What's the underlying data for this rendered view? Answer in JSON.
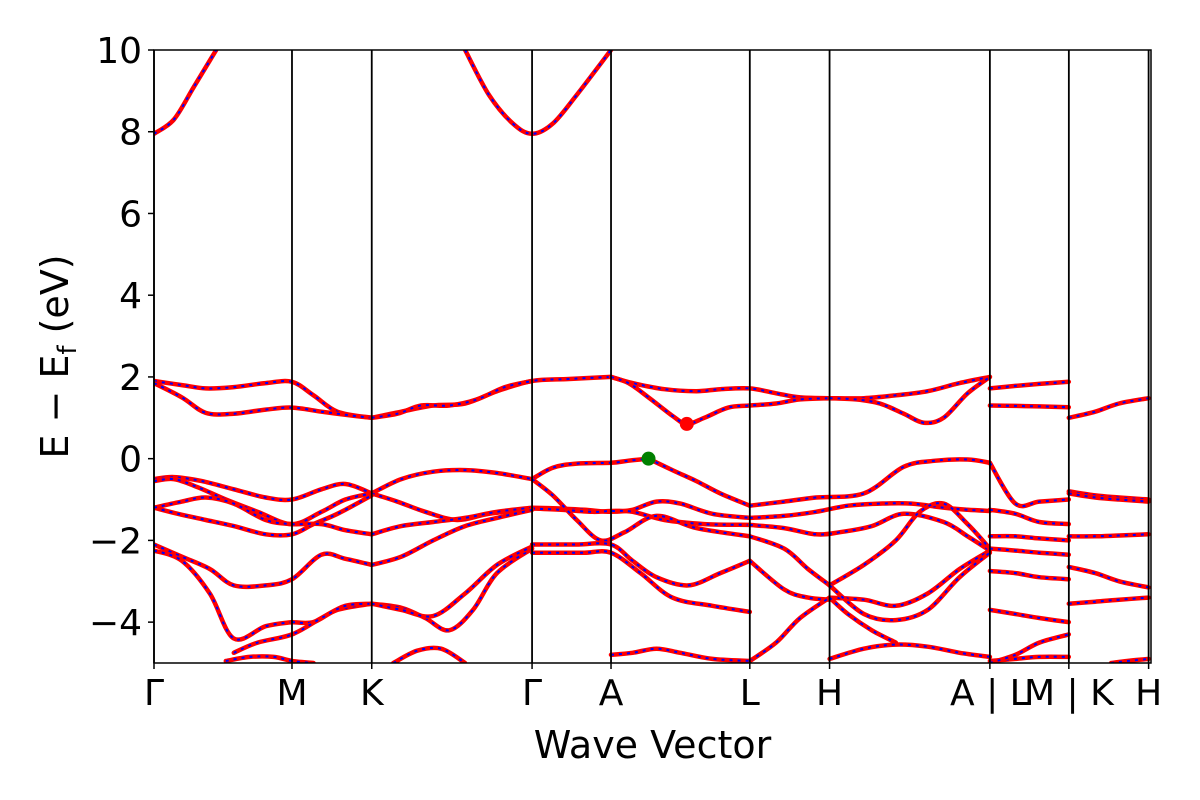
{
  "chart_data": {
    "type": "line",
    "title": "",
    "xlabel": "Wave Vector",
    "ylabel": "E − E_f (eV)",
    "ylabel_parts": {
      "main": "E − E",
      "sub": "f",
      "unit": " (eV)"
    },
    "ylim": [
      -5,
      10
    ],
    "yticks": [
      {
        "value": 10,
        "label": "10"
      },
      {
        "value": 8,
        "label": "8"
      },
      {
        "value": 6,
        "label": "6"
      },
      {
        "value": 4,
        "label": "4"
      },
      {
        "value": 2,
        "label": "2"
      },
      {
        "value": 0,
        "label": "0"
      },
      {
        "value": -2,
        "label": "−2"
      },
      {
        "value": -4,
        "label": "−4"
      }
    ],
    "xlim": [
      0,
      12.5
    ],
    "kpoints": [
      {
        "x": 0.0,
        "label": "Γ"
      },
      {
        "x": 1.73,
        "label": "M"
      },
      {
        "x": 2.73,
        "label": "K"
      },
      {
        "x": 4.74,
        "label": "Γ"
      },
      {
        "x": 5.73,
        "label": "A"
      },
      {
        "x": 7.47,
        "label": "L"
      },
      {
        "x": 8.47,
        "label": "H"
      },
      {
        "x": 10.48,
        "label": "A | L"
      },
      {
        "x": 11.47,
        "label": "M | K"
      },
      {
        "x": 12.47,
        "label": "H"
      }
    ],
    "line_colors": {
      "band": "#ff0000",
      "overlay": "#0000ff"
    },
    "markers": [
      {
        "name": "VBM",
        "x": 6.2,
        "y": 0.0,
        "color": "#008000"
      },
      {
        "name": "CBM",
        "x": 6.68,
        "y": 0.85,
        "color": "#ff0000"
      }
    ],
    "bands": [
      {
        "x": [
          0.0,
          0.35,
          0.65,
          1.0,
          1.4,
          1.73,
          2.0,
          2.3,
          2.73
        ],
        "y": [
          1.9,
          1.8,
          1.72,
          1.75,
          1.85,
          1.88,
          1.55,
          1.15,
          1.0
        ]
      },
      {
        "x": [
          2.73,
          3.1,
          3.5,
          3.9,
          4.3,
          4.74,
          5.2,
          5.73
        ],
        "y": [
          1.0,
          1.15,
          1.3,
          1.35,
          1.65,
          1.9,
          1.95,
          2.0
        ]
      },
      {
        "x": [
          5.73,
          6.0,
          6.4,
          6.8,
          7.1,
          7.47,
          7.8,
          8.1,
          8.47
        ],
        "y": [
          2.0,
          1.85,
          1.7,
          1.65,
          1.7,
          1.72,
          1.6,
          1.5,
          1.48
        ]
      },
      {
        "x": [
          8.47,
          8.9,
          9.3,
          9.7,
          10.1,
          10.48
        ],
        "y": [
          1.48,
          1.48,
          1.55,
          1.65,
          1.85,
          2.0
        ]
      },
      {
        "x": [
          0.0,
          0.35,
          0.65,
          1.0,
          1.4,
          1.73,
          2.1,
          2.5,
          2.73
        ],
        "y": [
          1.85,
          1.5,
          1.12,
          1.1,
          1.2,
          1.25,
          1.15,
          1.05,
          1.0
        ]
      },
      {
        "x": [
          2.73,
          3.05,
          3.35,
          3.7,
          4.05,
          4.4,
          4.74
        ],
        "y": [
          1.0,
          1.1,
          1.3,
          1.3,
          1.45,
          1.75,
          1.9
        ]
      },
      {
        "x": [
          5.73,
          5.95,
          6.2,
          6.5,
          6.68,
          6.9,
          7.2,
          7.47,
          7.8,
          8.1,
          8.47
        ],
        "y": [
          2.0,
          1.85,
          1.5,
          1.05,
          0.85,
          1.0,
          1.25,
          1.3,
          1.35,
          1.45,
          1.48
        ]
      },
      {
        "x": [
          8.47,
          8.8,
          9.1,
          9.4,
          9.65,
          9.9,
          10.2,
          10.48
        ],
        "y": [
          1.48,
          1.45,
          1.35,
          1.1,
          0.88,
          1.0,
          1.6,
          2.0
        ]
      },
      {
        "x": [
          10.48,
          10.8,
          11.1,
          11.47
        ],
        "y": [
          1.72,
          1.78,
          1.83,
          1.88
        ]
      },
      {
        "x": [
          10.48,
          10.8,
          11.1,
          11.47
        ],
        "y": [
          1.3,
          1.29,
          1.28,
          1.26
        ]
      },
      {
        "x": [
          11.47,
          11.8,
          12.1,
          12.47
        ],
        "y": [
          1.0,
          1.15,
          1.35,
          1.48
        ]
      },
      {
        "x": [
          0.0,
          0.25,
          0.6,
          1.0,
          1.4,
          1.73,
          2.1,
          2.4,
          2.73
        ],
        "y": [
          -0.5,
          -0.45,
          -0.55,
          -0.75,
          -0.95,
          -1.0,
          -0.75,
          -0.62,
          -0.85
        ]
      },
      {
        "x": [
          2.73,
          3.1,
          3.5,
          3.9,
          4.3,
          4.74
        ],
        "y": [
          -0.85,
          -0.5,
          -0.32,
          -0.28,
          -0.35,
          -0.5
        ]
      },
      {
        "x": [
          4.74,
          5.0,
          5.3,
          5.73,
          5.95,
          6.2
        ],
        "y": [
          -0.5,
          -0.22,
          -0.12,
          -0.1,
          -0.05,
          0.0
        ]
      },
      {
        "x": [
          6.2,
          6.5,
          6.8,
          7.1,
          7.47
        ],
        "y": [
          0.0,
          -0.28,
          -0.55,
          -0.85,
          -1.15
        ]
      },
      {
        "x": [
          7.47,
          7.9,
          8.3,
          8.9,
          9.4,
          9.8,
          10.2,
          10.48
        ],
        "y": [
          -1.15,
          -1.05,
          -0.95,
          -0.85,
          -0.2,
          -0.05,
          -0.02,
          -0.1
        ]
      },
      {
        "x": [
          0.0,
          0.25,
          0.55,
          0.9,
          1.3,
          1.73,
          2.1,
          2.4,
          2.73
        ],
        "y": [
          -0.55,
          -0.5,
          -0.7,
          -1.0,
          -1.3,
          -1.6,
          -1.3,
          -1.0,
          -0.85
        ]
      },
      {
        "x": [
          2.73,
          3.05,
          3.4,
          3.8,
          4.2,
          4.74
        ],
        "y": [
          -0.85,
          -1.05,
          -1.3,
          -1.5,
          -1.35,
          -1.22
        ]
      },
      {
        "x": [
          0.0,
          0.3,
          0.65,
          1.0,
          1.4,
          1.73,
          2.0,
          2.3,
          2.73
        ],
        "y": [
          -1.2,
          -1.35,
          -1.5,
          -1.65,
          -1.85,
          -1.85,
          -1.6,
          -1.35,
          -0.9
        ]
      },
      {
        "x": [
          0.0,
          0.35,
          0.65,
          1.0,
          1.4,
          1.73,
          2.1,
          2.4,
          2.73
        ],
        "y": [
          -1.2,
          -1.05,
          -0.95,
          -1.1,
          -1.5,
          -1.6,
          -1.6,
          -1.75,
          -1.85
        ]
      },
      {
        "x": [
          2.73,
          3.1,
          3.5,
          3.9,
          4.3,
          4.74
        ],
        "y": [
          -1.85,
          -1.65,
          -1.55,
          -1.45,
          -1.3,
          -1.2
        ]
      },
      {
        "x": [
          4.74,
          5.1,
          5.4,
          5.73,
          6.0,
          6.3,
          6.6,
          7.0,
          7.47
        ],
        "y": [
          -1.2,
          -1.22,
          -1.25,
          -1.3,
          -1.25,
          -1.05,
          -1.1,
          -1.35,
          -1.45
        ]
      },
      {
        "x": [
          7.47,
          7.9,
          8.3,
          8.7,
          9.1,
          9.5,
          9.9,
          10.2,
          10.48
        ],
        "y": [
          -1.45,
          -1.4,
          -1.3,
          -1.15,
          -1.1,
          -1.1,
          -1.2,
          -1.25,
          -1.28
        ]
      },
      {
        "x": [
          4.74,
          5.1,
          5.5,
          5.73,
          6.0,
          6.4,
          6.9,
          7.47
        ],
        "y": [
          -1.22,
          -1.25,
          -1.3,
          -1.28,
          -1.3,
          -1.5,
          -1.6,
          -1.62
        ]
      },
      {
        "x": [
          7.47,
          7.9,
          8.3,
          8.6,
          9.0,
          9.4,
          9.9,
          10.2,
          10.48
        ],
        "y": [
          -1.62,
          -1.7,
          -1.85,
          -1.8,
          -1.65,
          -1.35,
          -1.55,
          -1.9,
          -2.25
        ]
      },
      {
        "x": [
          4.74,
          5.0,
          5.3,
          5.6,
          5.9,
          6.3,
          6.8,
          7.47
        ],
        "y": [
          -0.5,
          -0.9,
          -1.5,
          -2.0,
          -1.8,
          -1.4,
          -1.7,
          -1.9
        ]
      },
      {
        "x": [
          7.47,
          7.9,
          8.2,
          8.47
        ],
        "y": [
          -1.9,
          -2.2,
          -2.7,
          -3.1
        ]
      },
      {
        "x": [
          8.47,
          8.9,
          9.3,
          9.6,
          9.9,
          10.2,
          10.48
        ],
        "y": [
          -3.1,
          -2.6,
          -2.0,
          -1.3,
          -1.1,
          -1.6,
          -2.2
        ]
      },
      {
        "x": [
          0.0,
          0.35,
          0.7,
          1.0,
          1.4,
          1.73,
          2.1,
          2.4,
          2.73
        ],
        "y": [
          -2.1,
          -2.4,
          -2.7,
          -3.1,
          -3.1,
          -2.95,
          -2.35,
          -2.45,
          -2.6
        ]
      },
      {
        "x": [
          2.73,
          3.1,
          3.5,
          3.9,
          4.3,
          4.74
        ],
        "y": [
          -2.6,
          -2.4,
          -2.0,
          -1.65,
          -1.45,
          -1.25
        ]
      },
      {
        "x": [
          4.74,
          5.0,
          5.3,
          5.73,
          6.0,
          6.3,
          6.7,
          7.1,
          7.47
        ],
        "y": [
          -2.1,
          -2.1,
          -2.1,
          -2.1,
          -2.5,
          -2.9,
          -3.1,
          -2.8,
          -2.5
        ]
      },
      {
        "x": [
          4.74,
          5.1,
          5.4,
          5.73,
          6.1,
          6.5,
          7.0,
          7.47
        ],
        "y": [
          -2.3,
          -2.3,
          -2.3,
          -2.3,
          -2.8,
          -3.4,
          -3.6,
          -3.75
        ]
      },
      {
        "x": [
          7.47,
          7.9,
          8.2,
          8.47
        ],
        "y": [
          -2.5,
          -3.2,
          -3.4,
          -3.45
        ]
      },
      {
        "x": [
          8.47,
          8.9,
          9.3,
          9.7,
          10.1,
          10.48
        ],
        "y": [
          -3.4,
          -3.45,
          -3.6,
          -3.3,
          -2.7,
          -2.25
        ]
      },
      {
        "x": [
          8.47,
          8.9,
          9.3,
          9.7,
          10.1,
          10.48
        ],
        "y": [
          -3.1,
          -3.8,
          -3.95,
          -3.7,
          -2.9,
          -2.3
        ]
      },
      {
        "x": [
          0.0,
          0.35,
          0.7,
          1.0,
          1.4,
          1.73
        ],
        "y": [
          -2.25,
          -2.5,
          -3.3,
          -4.4,
          -4.1,
          -4.0
        ]
      },
      {
        "x": [
          1.73,
          2.0,
          2.3,
          2.73
        ],
        "y": [
          -4.0,
          -4.0,
          -3.7,
          -3.55
        ]
      },
      {
        "x": [
          1.0,
          1.3,
          1.73,
          2.1,
          2.4,
          2.73
        ],
        "y": [
          -4.75,
          -4.5,
          -4.3,
          -3.9,
          -3.6,
          -3.55
        ]
      },
      {
        "x": [
          2.73,
          3.1,
          3.4,
          3.7,
          4.0,
          4.3,
          4.74
        ],
        "y": [
          -3.55,
          -3.65,
          -3.9,
          -4.2,
          -3.7,
          -2.8,
          -2.2
        ]
      },
      {
        "x": [
          2.73,
          3.1,
          3.5,
          3.9,
          4.3,
          4.74
        ],
        "y": [
          -3.55,
          -3.7,
          -3.85,
          -3.3,
          -2.6,
          -2.15
        ]
      },
      {
        "x": [
          7.47,
          7.8,
          8.1,
          8.47
        ],
        "y": [
          -4.95,
          -4.5,
          -3.9,
          -3.4
        ]
      },
      {
        "x": [
          8.47,
          8.7,
          9.0,
          9.3
        ],
        "y": [
          -3.4,
          -3.8,
          -4.2,
          -4.5
        ]
      },
      {
        "x": [
          5.73,
          6.0,
          6.3,
          6.6,
          7.0,
          7.47
        ],
        "y": [
          -4.8,
          -4.75,
          -4.65,
          -4.75,
          -4.9,
          -4.95
        ]
      },
      {
        "x": [
          8.47,
          8.9,
          9.3,
          9.7,
          10.1,
          10.48
        ],
        "y": [
          -4.9,
          -4.65,
          -4.55,
          -4.6,
          -4.75,
          -4.85
        ]
      },
      {
        "x": [
          0.9,
          1.2,
          1.5,
          1.73,
          2.0
        ],
        "y": [
          -4.95,
          -4.85,
          -4.85,
          -4.95,
          -5.0
        ]
      },
      {
        "x": [
          3.0,
          3.3,
          3.6,
          3.9
        ],
        "y": [
          -5.0,
          -4.7,
          -4.65,
          -5.0
        ]
      },
      {
        "x": [
          0.0,
          0.25,
          0.5,
          0.78
        ],
        "y": [
          7.95,
          8.3,
          9.1,
          10.0
        ]
      },
      {
        "x": [
          3.9,
          4.2,
          4.5,
          4.74,
          5.0,
          5.3,
          5.73
        ],
        "y": [
          10.0,
          8.9,
          8.2,
          7.95,
          8.2,
          8.9,
          10.0
        ]
      },
      {
        "x": [
          10.48,
          10.8,
          11.1,
          11.47
        ],
        "y": [
          -0.1,
          -1.1,
          -1.05,
          -1.0
        ]
      },
      {
        "x": [
          10.48,
          10.8,
          11.1,
          11.47
        ],
        "y": [
          -1.25,
          -1.35,
          -1.55,
          -1.6
        ]
      },
      {
        "x": [
          10.48,
          10.8,
          11.1,
          11.47
        ],
        "y": [
          -1.9,
          -1.9,
          -1.95,
          -2.0
        ]
      },
      {
        "x": [
          10.48,
          10.8,
          11.1,
          11.47
        ],
        "y": [
          -2.2,
          -2.25,
          -2.3,
          -2.35
        ]
      },
      {
        "x": [
          10.48,
          10.8,
          11.1,
          11.47
        ],
        "y": [
          -2.75,
          -2.8,
          -2.9,
          -2.95
        ]
      },
      {
        "x": [
          10.48,
          10.8,
          11.1,
          11.47
        ],
        "y": [
          -3.7,
          -3.8,
          -3.9,
          -4.0
        ]
      },
      {
        "x": [
          10.48,
          10.8,
          11.1,
          11.47
        ],
        "y": [
          -4.95,
          -4.9,
          -4.85,
          -4.85
        ]
      },
      {
        "x": [
          10.48,
          10.8,
          11.1,
          11.47
        ],
        "y": [
          -5.0,
          -4.8,
          -4.5,
          -4.3
        ]
      },
      {
        "x": [
          11.47,
          11.8,
          12.1,
          12.47
        ],
        "y": [
          -0.8,
          -0.9,
          -0.95,
          -1.0
        ]
      },
      {
        "x": [
          11.47,
          11.8,
          12.1,
          12.47
        ],
        "y": [
          -0.85,
          -0.95,
          -1.0,
          -1.05
        ]
      },
      {
        "x": [
          11.47,
          11.8,
          12.1,
          12.47
        ],
        "y": [
          -1.9,
          -1.9,
          -1.88,
          -1.85
        ]
      },
      {
        "x": [
          11.47,
          11.8,
          12.1,
          12.47
        ],
        "y": [
          -2.65,
          -2.8,
          -3.0,
          -3.15
        ]
      },
      {
        "x": [
          11.47,
          11.8,
          12.1,
          12.47
        ],
        "y": [
          -3.55,
          -3.5,
          -3.45,
          -3.4
        ]
      },
      {
        "x": [
          12.0,
          12.2,
          12.47
        ],
        "y": [
          -5.0,
          -4.95,
          -4.9
        ]
      }
    ]
  }
}
